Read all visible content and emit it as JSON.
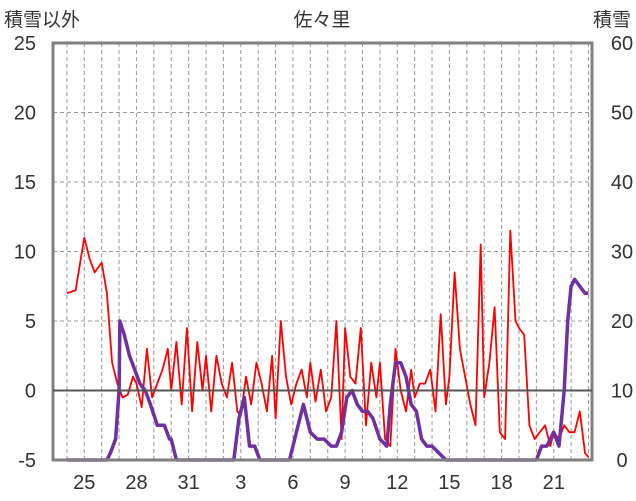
{
  "chart_data": {
    "type": "line",
    "title": "佐々里",
    "ylabel_left": "積雪以外",
    "ylabel_right": "積雪",
    "ylim_left": [
      -5,
      25
    ],
    "ylim_right": [
      0,
      60
    ],
    "yticks_left": [
      "25",
      "20",
      "15",
      "10",
      "5",
      "0",
      "-5"
    ],
    "yticks_right": [
      "60",
      "50",
      "40",
      "30",
      "20",
      "10",
      "0"
    ],
    "xticks": [
      "25",
      "28",
      "31",
      "3",
      "6",
      "9",
      "12",
      "15",
      "18",
      "21"
    ],
    "series": [
      {
        "axis": "left",
        "color": "#ff0000",
        "x": [
          0,
          0.5,
          1.0,
          1.3,
          1.6,
          2.0,
          2.3,
          2.6,
          2.9,
          3.2,
          3.5,
          3.8,
          4.0,
          4.3,
          4.6,
          4.9,
          5.2,
          5.5,
          5.8,
          6.0,
          6.3,
          6.6,
          6.9,
          7.2,
          7.5,
          7.8,
          8.0,
          8.3,
          8.6,
          8.9,
          9.2,
          9.5,
          9.8,
          10.0,
          10.3,
          10.6,
          10.9,
          11.2,
          11.5,
          11.8,
          12.0,
          12.3,
          12.6,
          12.9,
          13.2,
          13.5,
          13.8,
          14.0,
          14.3,
          14.6,
          14.9,
          15.2,
          15.5,
          15.8,
          16.0,
          16.3,
          16.6,
          16.9,
          17.2,
          17.5,
          17.8,
          18.0,
          18.3,
          18.6,
          18.9,
          19.2,
          19.5,
          19.8,
          20.0,
          20.3,
          20.6,
          20.9,
          21.2,
          21.5,
          21.8,
          22.0,
          22.3,
          22.6,
          22.9,
          23.2,
          23.5,
          23.8,
          24.0,
          24.3,
          24.6,
          24.9,
          25.2,
          25.5,
          25.8,
          26.0,
          26.3,
          26.6,
          26.9,
          27.2,
          27.5,
          27.8,
          28.0,
          28.3,
          28.6,
          28.9,
          29.2,
          29.5,
          29.8,
          30.0
        ],
        "values": [
          7.0,
          7.2,
          11.0,
          9.5,
          8.5,
          9.2,
          7.0,
          2.0,
          0.5,
          -0.5,
          -0.3,
          1.0,
          0.5,
          -1.2,
          3.0,
          -0.5,
          0.5,
          1.5,
          3.0,
          0.0,
          3.5,
          -1.0,
          4.5,
          -1.5,
          3.5,
          0.0,
          2.5,
          -1.5,
          2.5,
          0.5,
          -0.5,
          2.0,
          -1.5,
          -1.8,
          1.0,
          -1.0,
          2.0,
          0.5,
          -1.5,
          2.5,
          -2.0,
          5.0,
          1.0,
          -1.0,
          0.5,
          1.5,
          -0.5,
          2.0,
          -0.8,
          1.5,
          -1.5,
          -0.5,
          5.0,
          -3.5,
          4.5,
          1.0,
          0.5,
          4.5,
          -2.5,
          2.0,
          -0.5,
          2.0,
          -3.5,
          -4.0,
          3.0,
          0.0,
          -1.5,
          1.5,
          -0.5,
          0.5,
          0.5,
          1.5,
          -1.5,
          5.5,
          -1.0,
          1.0,
          8.5,
          3.0,
          1.0,
          -1.0,
          -2.5,
          10.5,
          -0.5,
          2.0,
          6.0,
          -3.0,
          -3.5,
          11.5,
          5.0,
          4.5,
          4.0,
          -2.5,
          -3.5,
          -3.0,
          -2.5,
          -4.0,
          -3.0,
          -3.5,
          -2.5,
          -3.0,
          -3.0,
          -1.5,
          -4.5,
          -4.8
        ]
      },
      {
        "axis": "right",
        "color": "#7030a0",
        "x": [
          0,
          1.5,
          2.0,
          2.3,
          2.5,
          2.8,
          3.0,
          3.05,
          3.3,
          3.6,
          3.9,
          4.2,
          4.5,
          4.8,
          5.2,
          5.6,
          5.9,
          6.0,
          6.3,
          7.0,
          8.0,
          9.0,
          9.6,
          9.9,
          10.2,
          10.5,
          10.8,
          11.1,
          11.4,
          11.7,
          12.0,
          12.8,
          13.2,
          13.6,
          14.0,
          14.4,
          14.8,
          15.2,
          15.5,
          15.8,
          16.1,
          16.4,
          16.7,
          17.0,
          17.3,
          17.6,
          18.0,
          18.4,
          18.6,
          18.9,
          19.2,
          19.5,
          19.8,
          20.1,
          20.4,
          20.7,
          21.0,
          21.4,
          21.8,
          22.1,
          22.4,
          22.7,
          23.0,
          23.4,
          24.0,
          25.0,
          26.0,
          27.0,
          27.3,
          27.6,
          28.0,
          28.3,
          28.6,
          28.8,
          29.0,
          29.2,
          29.5,
          29.8,
          30.0
        ],
        "values": [
          0,
          0,
          0,
          0,
          1,
          3,
          10,
          20,
          18,
          15,
          13,
          11,
          10,
          8,
          5,
          5,
          3,
          3,
          0,
          0,
          0,
          0,
          0,
          6,
          9,
          2,
          2,
          0,
          0,
          0,
          0,
          0,
          4,
          8,
          4,
          3,
          3,
          2,
          2,
          4,
          9,
          10,
          8,
          7,
          7,
          6,
          3,
          2,
          8,
          14,
          14,
          12,
          8,
          7,
          3,
          2,
          2,
          1,
          0,
          0,
          0,
          0,
          0,
          0,
          0,
          0,
          0,
          0,
          2,
          2,
          4,
          2,
          10,
          20,
          25,
          26,
          25,
          24,
          24
        ]
      }
    ],
    "grid": true
  }
}
